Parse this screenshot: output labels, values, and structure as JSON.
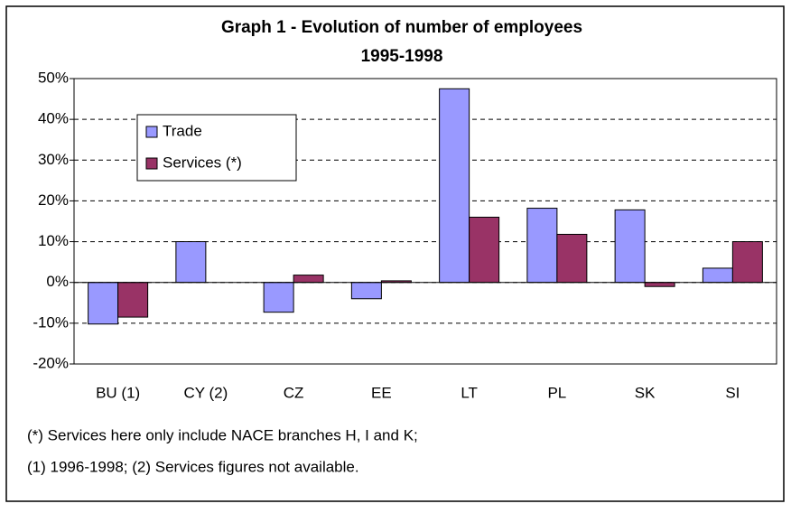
{
  "chart_data": {
    "type": "bar",
    "title": "Graph 1 - Evolution of number of employees",
    "subtitle": "1995-1998",
    "categories": [
      "BU (1)",
      "CY (2)",
      "CZ",
      "EE",
      "LT",
      "PL",
      "SK",
      "SI"
    ],
    "series": [
      {
        "name": "Trade",
        "color": "#9999ff",
        "values": [
          -10.2,
          10,
          -7.3,
          -4,
          47.5,
          18.2,
          17.8,
          3.5
        ]
      },
      {
        "name": "Services (*)",
        "color": "#993366",
        "values": [
          -8.5,
          null,
          1.8,
          0.4,
          16,
          11.8,
          -1,
          10
        ]
      }
    ],
    "ylim": [
      -20,
      50
    ],
    "yticks": [
      {
        "value": -20,
        "label": "-20%"
      },
      {
        "value": -10,
        "label": "-10%"
      },
      {
        "value": 0,
        "label": "0%"
      },
      {
        "value": 10,
        "label": "10%"
      },
      {
        "value": 20,
        "label": "20%"
      },
      {
        "value": 30,
        "label": "30%"
      },
      {
        "value": 40,
        "label": "40%"
      },
      {
        "value": 50,
        "label": "50%"
      }
    ],
    "grid": true,
    "legend": "upper left",
    "notes": [
      "(*) Services here only include NACE branches H,  I and K;",
      "(1) 1996-1998; (2) Services figures not available."
    ]
  }
}
